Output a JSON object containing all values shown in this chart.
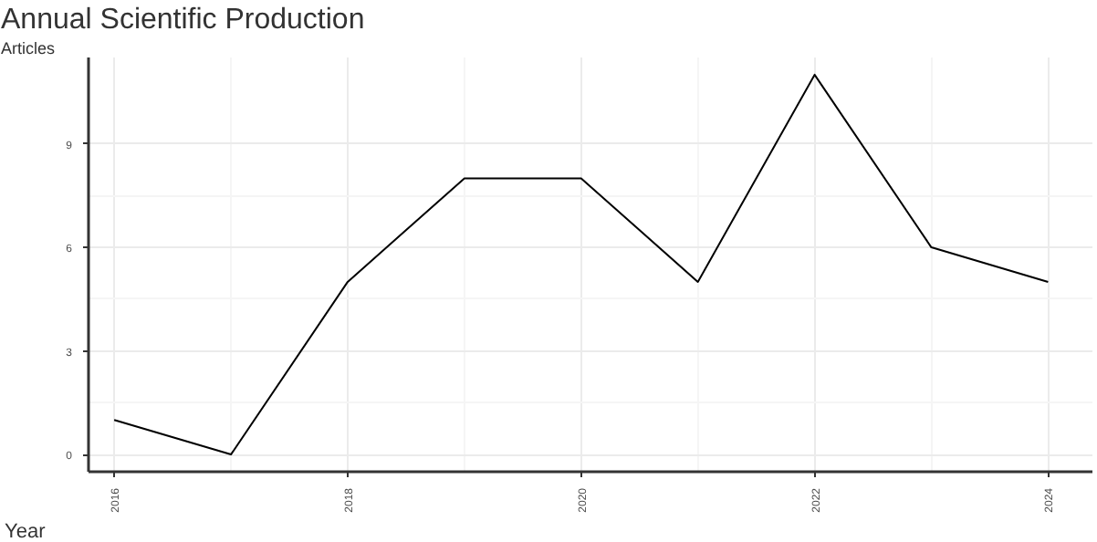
{
  "chart_data": {
    "type": "line",
    "title": "Annual Scientific Production",
    "xlabel": "Year",
    "ylabel": "Articles",
    "x": [
      2016,
      2017,
      2018,
      2019,
      2020,
      2021,
      2022,
      2023,
      2024
    ],
    "series": [
      {
        "color": "#000000",
        "values": [
          1,
          0,
          5,
          8,
          8,
          5,
          11,
          6,
          5
        ]
      }
    ],
    "xlim": [
      2015.78,
      2024.38
    ],
    "ylim": [
      -0.5,
      11.5
    ],
    "xticks": [
      2016,
      2018,
      2020,
      2022,
      2024
    ],
    "yticks": [
      0,
      3,
      6,
      9
    ],
    "grid": true,
    "marker": "none",
    "line_style": "solid"
  }
}
